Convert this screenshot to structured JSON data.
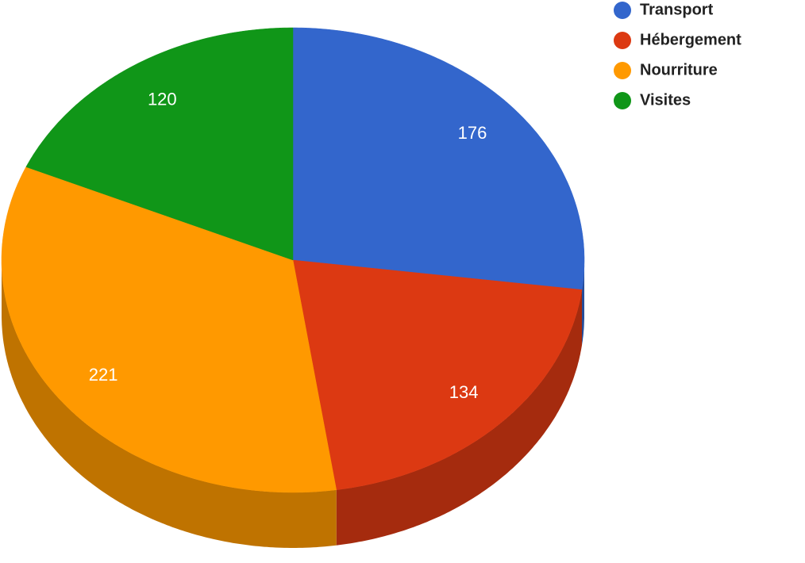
{
  "chart_data": {
    "type": "pie",
    "three_d": true,
    "categories": [
      "Transport",
      "Hébergement",
      "Nourriture",
      "Visites"
    ],
    "values": [
      176,
      134,
      221,
      120
    ],
    "colors": [
      "#3366cc",
      "#dc3912",
      "#ff9900",
      "#109618"
    ],
    "legend": "top-right"
  }
}
